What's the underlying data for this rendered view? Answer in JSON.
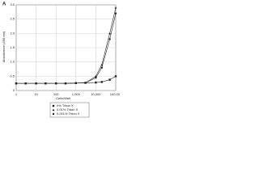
{
  "chart_data": {
    "type": "line",
    "title": "A",
    "x_label": "Cells/Well",
    "y_label": "Absorbance (490 nm)",
    "x": [
      1,
      3,
      10,
      30,
      100,
      300,
      1000,
      3000,
      10000,
      20000,
      50000,
      100000
    ],
    "series": [
      {
        "name": "0% Triton X",
        "color": "#222222",
        "marker": "square",
        "values": [
          0.25,
          0.25,
          0.25,
          0.25,
          0.25,
          0.25,
          0.26,
          0.27,
          0.28,
          0.3,
          0.38,
          0.5
        ]
      },
      {
        "name": "0.01% Triton X",
        "color": "#222222",
        "marker": "triangle",
        "values": [
          0.25,
          0.25,
          0.25,
          0.25,
          0.25,
          0.25,
          0.26,
          0.27,
          0.5,
          0.9,
          2.0,
          2.9
        ]
      },
      {
        "name": "0.001% Triton X",
        "color": "#222222",
        "marker": "circle",
        "values": [
          0.25,
          0.25,
          0.25,
          0.25,
          0.25,
          0.25,
          0.26,
          0.27,
          0.45,
          0.8,
          1.8,
          2.7
        ]
      }
    ],
    "xlim": [
      1,
      100000
    ],
    "log_x": true,
    "xticks": [
      1,
      10,
      100,
      {
        "value": 1000,
        "label": "1,000"
      },
      {
        "value": 10000,
        "label": "10,000"
      },
      {
        "value": 100000,
        "label": "100,000"
      }
    ],
    "ylim": [
      0,
      3
    ],
    "yticks": [
      0,
      0.5,
      {
        "value": 1,
        "label": "1.0"
      },
      1.5,
      {
        "value": 2,
        "label": "2.0"
      },
      2.5,
      {
        "value": 3,
        "label": "3.0"
      }
    ],
    "grid": true
  }
}
